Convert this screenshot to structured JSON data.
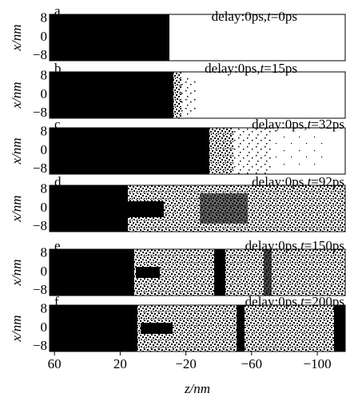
{
  "chart_data": {
    "type": "panels",
    "xlabel": "z/nm",
    "ylabel": "x/nm",
    "xlim": [
      63,
      -117
    ],
    "ylim": [
      -10,
      10
    ],
    "xticks": [
      60,
      20,
      {
        "value": -20,
        "label": "−20"
      },
      {
        "value": -60,
        "label": "−60"
      },
      {
        "value": -100,
        "label": "−100"
      }
    ],
    "yticks": [
      8,
      0,
      {
        "value": -8,
        "label": "−8"
      }
    ],
    "panels": [
      {
        "label": "a",
        "annotation": "delay:0ps,",
        "variable": "t",
        "time": "=0ps"
      },
      {
        "label": "b",
        "annotation": "delay:0ps,",
        "variable": "t",
        "time": "=15ps"
      },
      {
        "label": "c",
        "annotation": "delay:0ps,",
        "variable": "t",
        "time": "=32ps"
      },
      {
        "label": "d",
        "annotation": "delay:0ps,",
        "variable": "t",
        "time": "=92ps"
      },
      {
        "label": "e",
        "annotation": "delay:0ps,",
        "variable": "t",
        "time": "=150ps"
      },
      {
        "label": "f",
        "annotation": "delay:0ps,",
        "variable": "t",
        "time": "=200ps"
      }
    ]
  }
}
